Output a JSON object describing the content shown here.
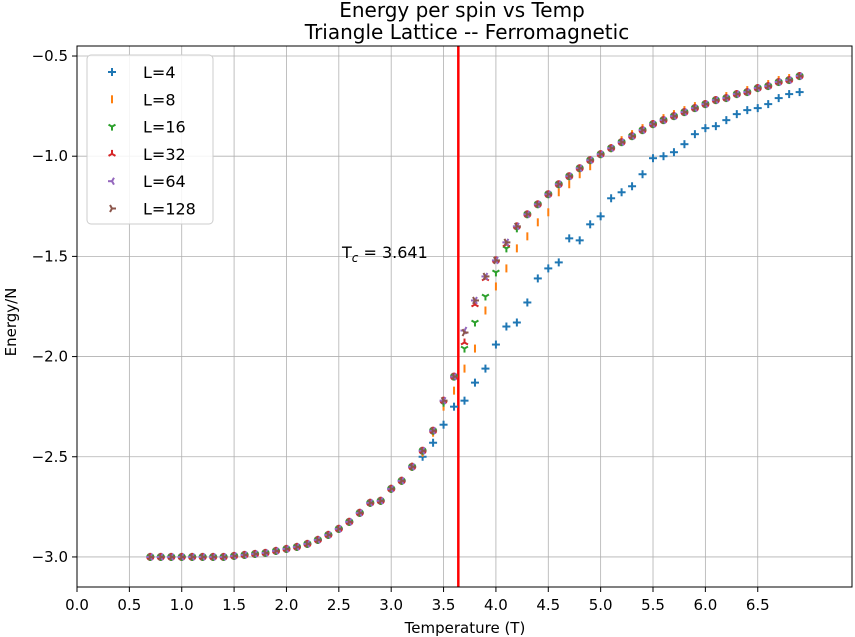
{
  "chart_data": {
    "type": "scatter",
    "title": "Energy per spin vs Temp",
    "subtitle": "Triangle Lattice -- Ferromagnetic",
    "xlabel": "Temperature (T)",
    "ylabel": "Energy/N",
    "xlim": [
      0.0,
      7.4
    ],
    "ylim": [
      -3.15,
      -0.45
    ],
    "xticks": [
      0.0,
      0.5,
      1.0,
      1.5,
      2.0,
      2.5,
      3.0,
      3.5,
      4.0,
      4.5,
      5.0,
      5.5,
      6.0,
      6.5
    ],
    "xtick_labels": [
      "0.0",
      "0.5",
      "1.0",
      "1.5",
      "2.0",
      "2.5",
      "3.0",
      "3.5",
      "4.0",
      "4.5",
      "5.0",
      "5.5",
      "6.0",
      "6.5"
    ],
    "yticks": [
      -3.0,
      -2.5,
      -2.0,
      -1.5,
      -1.0,
      -0.5
    ],
    "ytick_labels": [
      "−3.0",
      "−2.5",
      "−2.0",
      "−1.5",
      "−1.0",
      "−0.5"
    ],
    "grid": true,
    "legend_position": "top-left",
    "critical_line": {
      "x": 3.641,
      "color": "#ff0000"
    },
    "annotation": {
      "base": "T",
      "sub": "c",
      "rest": " = 3.641",
      "x": 2.5,
      "y": -1.5
    },
    "x": [
      0.7,
      0.8,
      0.9,
      1.0,
      1.1,
      1.2,
      1.3,
      1.4,
      1.5,
      1.6,
      1.7,
      1.8,
      1.9,
      2.0,
      2.1,
      2.2,
      2.3,
      2.4,
      2.5,
      2.6,
      2.7,
      2.8,
      2.9,
      3.0,
      3.1,
      3.2,
      3.3,
      3.4,
      3.5,
      3.6,
      3.7,
      3.8,
      3.9,
      4.0,
      4.1,
      4.2,
      4.3,
      4.4,
      4.5,
      4.6,
      4.7,
      4.8,
      4.9,
      5.0,
      5.1,
      5.2,
      5.3,
      5.4,
      5.5,
      5.6,
      5.7,
      5.8,
      5.9,
      6.0,
      6.1,
      6.2,
      6.3,
      6.4,
      6.5,
      6.6,
      6.7,
      6.8,
      6.9
    ],
    "series": [
      {
        "name": "L=4",
        "marker": "+",
        "color": "#1f77b4",
        "values": [
          -3.0,
          -3.0,
          -3.0,
          -3.0,
          -3.0,
          -3.0,
          -3.0,
          -3.0,
          -2.995,
          -2.99,
          -2.985,
          -2.98,
          -2.97,
          -2.96,
          -2.95,
          -2.935,
          -2.915,
          -2.89,
          -2.86,
          -2.825,
          -2.78,
          -2.73,
          -2.72,
          -2.66,
          -2.62,
          -2.55,
          -2.5,
          -2.43,
          -2.34,
          -2.25,
          -2.22,
          -2.13,
          -2.06,
          -1.94,
          -1.85,
          -1.83,
          -1.73,
          -1.61,
          -1.56,
          -1.53,
          -1.41,
          -1.42,
          -1.34,
          -1.3,
          -1.21,
          -1.18,
          -1.15,
          -1.09,
          -1.01,
          -1.0,
          -0.98,
          -0.94,
          -0.89,
          -0.86,
          -0.85,
          -0.82,
          -0.79,
          -0.77,
          -0.76,
          -0.74,
          -0.71,
          -0.69,
          -0.68
        ]
      },
      {
        "name": "L=8",
        "marker": "|",
        "color": "#ff7f0e",
        "values": [
          -3.0,
          -3.0,
          -3.0,
          -3.0,
          -3.0,
          -3.0,
          -3.0,
          -3.0,
          -2.995,
          -2.99,
          -2.985,
          -2.98,
          -2.97,
          -2.96,
          -2.95,
          -2.935,
          -2.915,
          -2.89,
          -2.86,
          -2.825,
          -2.78,
          -2.73,
          -2.72,
          -2.66,
          -2.62,
          -2.55,
          -2.48,
          -2.38,
          -2.25,
          -2.17,
          -2.06,
          -1.96,
          -1.77,
          -1.65,
          -1.56,
          -1.46,
          -1.4,
          -1.33,
          -1.28,
          -1.18,
          -1.14,
          -1.09,
          -1.05,
          -0.99,
          -0.96,
          -0.92,
          -0.89,
          -0.86,
          -0.84,
          -0.81,
          -0.79,
          -0.77,
          -0.75,
          -0.74,
          -0.72,
          -0.7,
          -0.69,
          -0.67,
          -0.66,
          -0.64,
          -0.62,
          -0.61,
          -0.6
        ]
      },
      {
        "name": "L=16",
        "marker": "tri_down",
        "color": "#2ca02c",
        "values": [
          -3.0,
          -3.0,
          -3.0,
          -3.0,
          -3.0,
          -3.0,
          -3.0,
          -3.0,
          -2.995,
          -2.99,
          -2.985,
          -2.98,
          -2.97,
          -2.96,
          -2.95,
          -2.935,
          -2.915,
          -2.89,
          -2.86,
          -2.825,
          -2.78,
          -2.73,
          -2.72,
          -2.66,
          -2.62,
          -2.55,
          -2.47,
          -2.37,
          -2.23,
          -2.1,
          -1.96,
          -1.83,
          -1.7,
          -1.58,
          -1.46,
          -1.36,
          -1.29,
          -1.24,
          -1.19,
          -1.14,
          -1.1,
          -1.06,
          -1.02,
          -0.99,
          -0.96,
          -0.93,
          -0.9,
          -0.87,
          -0.84,
          -0.82,
          -0.8,
          -0.78,
          -0.76,
          -0.74,
          -0.72,
          -0.71,
          -0.69,
          -0.68,
          -0.66,
          -0.65,
          -0.63,
          -0.62,
          -0.6
        ]
      },
      {
        "name": "L=32",
        "marker": "tri_up",
        "color": "#d62728",
        "values": [
          -3.0,
          -3.0,
          -3.0,
          -3.0,
          -3.0,
          -3.0,
          -3.0,
          -3.0,
          -2.995,
          -2.99,
          -2.985,
          -2.98,
          -2.97,
          -2.96,
          -2.95,
          -2.935,
          -2.915,
          -2.89,
          -2.86,
          -2.825,
          -2.78,
          -2.73,
          -2.72,
          -2.66,
          -2.62,
          -2.55,
          -2.47,
          -2.37,
          -2.22,
          -2.1,
          -1.93,
          -1.74,
          -1.61,
          -1.52,
          -1.44,
          -1.35,
          -1.29,
          -1.24,
          -1.19,
          -1.14,
          -1.1,
          -1.06,
          -1.02,
          -0.99,
          -0.96,
          -0.93,
          -0.9,
          -0.87,
          -0.84,
          -0.82,
          -0.8,
          -0.78,
          -0.76,
          -0.74,
          -0.72,
          -0.71,
          -0.69,
          -0.68,
          -0.66,
          -0.65,
          -0.63,
          -0.62,
          -0.6
        ]
      },
      {
        "name": "L=64",
        "marker": "tri_left",
        "color": "#9467bd",
        "values": [
          -3.0,
          -3.0,
          -3.0,
          -3.0,
          -3.0,
          -3.0,
          -3.0,
          -3.0,
          -2.995,
          -2.99,
          -2.985,
          -2.98,
          -2.97,
          -2.96,
          -2.95,
          -2.935,
          -2.915,
          -2.89,
          -2.86,
          -2.825,
          -2.78,
          -2.73,
          -2.72,
          -2.66,
          -2.62,
          -2.55,
          -2.47,
          -2.37,
          -2.22,
          -2.1,
          -1.87,
          -1.72,
          -1.6,
          -1.52,
          -1.43,
          -1.35,
          -1.29,
          -1.24,
          -1.19,
          -1.14,
          -1.1,
          -1.06,
          -1.02,
          -0.99,
          -0.96,
          -0.93,
          -0.9,
          -0.87,
          -0.84,
          -0.82,
          -0.8,
          -0.78,
          -0.76,
          -0.74,
          -0.72,
          -0.71,
          -0.69,
          -0.68,
          -0.66,
          -0.65,
          -0.63,
          -0.62,
          -0.6
        ]
      },
      {
        "name": "L=128",
        "marker": "tri_right",
        "color": "#8c564b",
        "values": [
          -3.0,
          -3.0,
          -3.0,
          -3.0,
          -3.0,
          -3.0,
          -3.0,
          -3.0,
          -2.995,
          -2.99,
          -2.985,
          -2.98,
          -2.97,
          -2.96,
          -2.95,
          -2.935,
          -2.915,
          -2.89,
          -2.86,
          -2.825,
          -2.78,
          -2.73,
          -2.72,
          -2.66,
          -2.62,
          -2.55,
          -2.47,
          -2.37,
          -2.22,
          -2.1,
          -1.88,
          -1.72,
          -1.6,
          -1.52,
          -1.43,
          -1.35,
          -1.29,
          -1.24,
          -1.19,
          -1.14,
          -1.1,
          -1.06,
          -1.02,
          -0.99,
          -0.96,
          -0.93,
          -0.9,
          -0.87,
          -0.84,
          -0.82,
          -0.8,
          -0.78,
          -0.76,
          -0.74,
          -0.72,
          -0.71,
          -0.69,
          -0.68,
          -0.66,
          -0.65,
          -0.63,
          -0.62,
          -0.6
        ]
      }
    ]
  }
}
